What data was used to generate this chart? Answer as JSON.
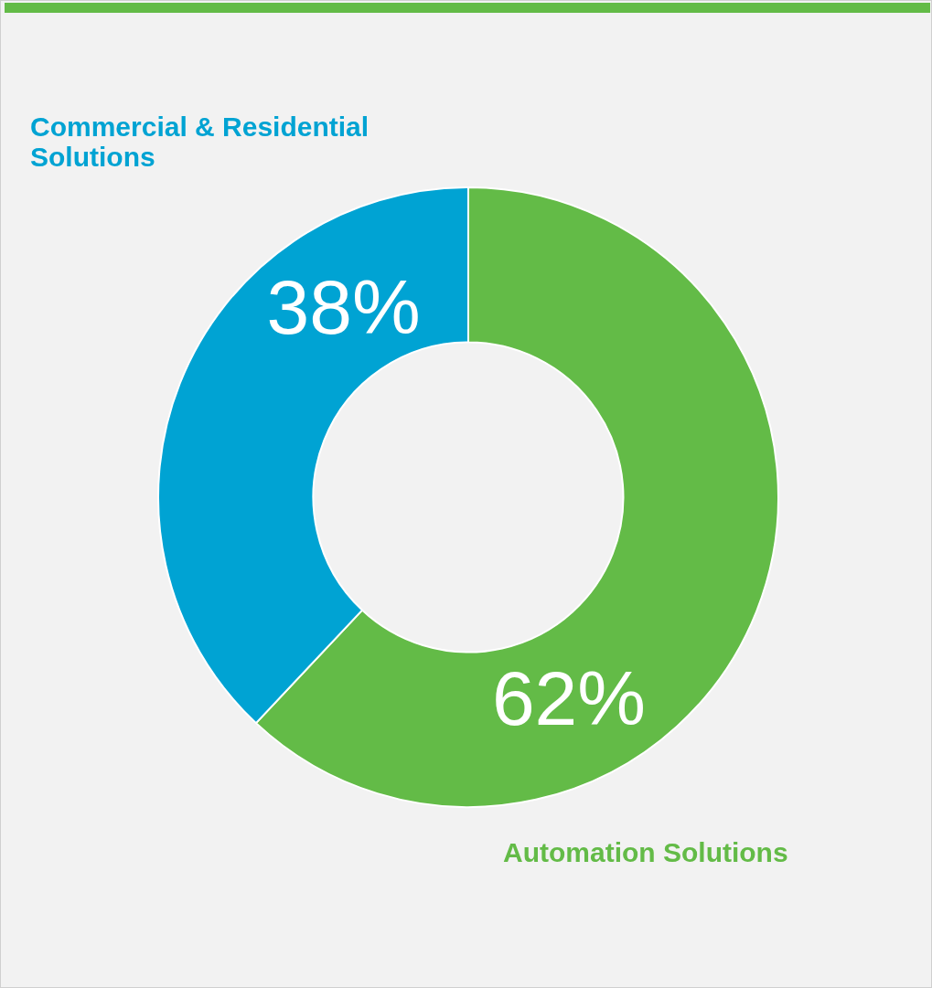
{
  "chart_data": {
    "type": "donut",
    "categories": [
      "Automation Solutions",
      "Commercial & Residential Solutions"
    ],
    "values": [
      62,
      38
    ],
    "colors": [
      "#63bb47",
      "#00a3d3"
    ],
    "value_labels": [
      "62%",
      "38%"
    ],
    "legend": false
  }
}
